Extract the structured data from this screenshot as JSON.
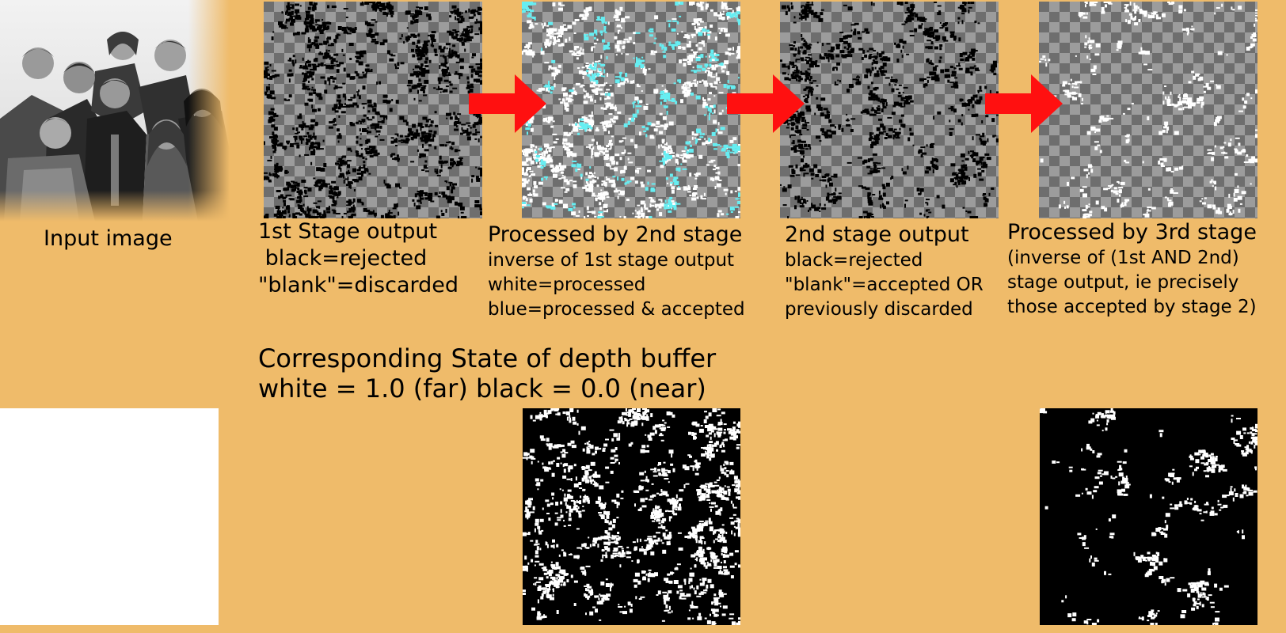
{
  "input_panel": {
    "label": "Input image"
  },
  "stage1": {
    "title": "1st Stage output",
    "lines": [
      " black=rejected",
      "\"blank\"=discarded"
    ]
  },
  "stage2_proc": {
    "title": "Processed by 2nd stage",
    "lines": [
      "inverse of 1st stage output",
      "white=processed",
      "blue=processed & accepted"
    ]
  },
  "stage2_out": {
    "title": "2nd stage output",
    "lines": [
      "black=rejected",
      "\"blank\"=accepted OR",
      "previously discarded"
    ]
  },
  "stage3_proc": {
    "title": "Processed by 3rd stage",
    "lines": [
      "(inverse of (1st AND 2nd)",
      "stage output, ie precisely",
      "those accepted by stage 2)"
    ]
  },
  "depth_section": {
    "title": "Corresponding State of depth buffer",
    "legend": "white = 1.0 (far) black = 0.0 (near)"
  },
  "colors": {
    "background": "#efbb6a",
    "arrow": "#ff1010",
    "accepted_blue": "#66eef2",
    "checker_light": "#9c9c9c",
    "checker_dark": "#6e6e6e"
  }
}
